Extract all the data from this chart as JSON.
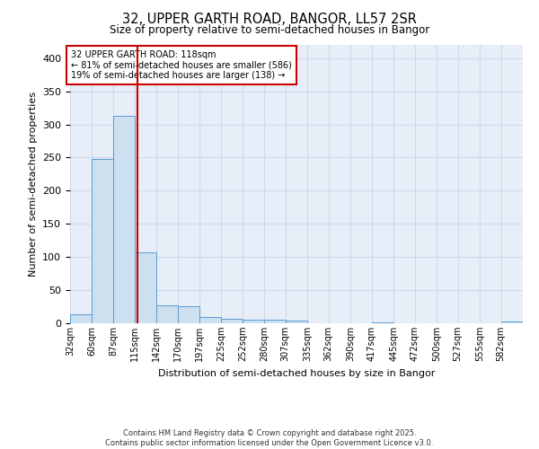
{
  "title_line1": "32, UPPER GARTH ROAD, BANGOR, LL57 2SR",
  "title_line2": "Size of property relative to semi-detached houses in Bangor",
  "xlabel": "Distribution of semi-detached houses by size in Bangor",
  "ylabel": "Number of semi-detached properties",
  "annotation_line1": "32 UPPER GARTH ROAD: 118sqm",
  "annotation_line2": "← 81% of semi-detached houses are smaller (586)",
  "annotation_line3": "19% of semi-detached houses are larger (138) →",
  "property_size": 118,
  "bar_color": "#cce0f0",
  "bar_edge_color": "#5b9bd5",
  "red_line_color": "#cc0000",
  "grid_color": "#d0d8e8",
  "background_color": "#e8eef8",
  "bins": [
    32,
    60,
    87,
    115,
    142,
    170,
    197,
    225,
    252,
    280,
    307,
    335,
    362,
    390,
    417,
    445,
    472,
    500,
    527,
    555,
    582
  ],
  "counts": [
    14,
    248,
    313,
    107,
    27,
    26,
    9,
    7,
    6,
    5,
    4,
    0,
    0,
    0,
    2,
    0,
    0,
    0,
    0,
    0,
    3
  ],
  "ylim": [
    0,
    420
  ],
  "yticks": [
    0,
    50,
    100,
    150,
    200,
    250,
    300,
    350,
    400
  ],
  "footer_line1": "Contains HM Land Registry data © Crown copyright and database right 2025.",
  "footer_line2": "Contains public sector information licensed under the Open Government Licence v3.0."
}
